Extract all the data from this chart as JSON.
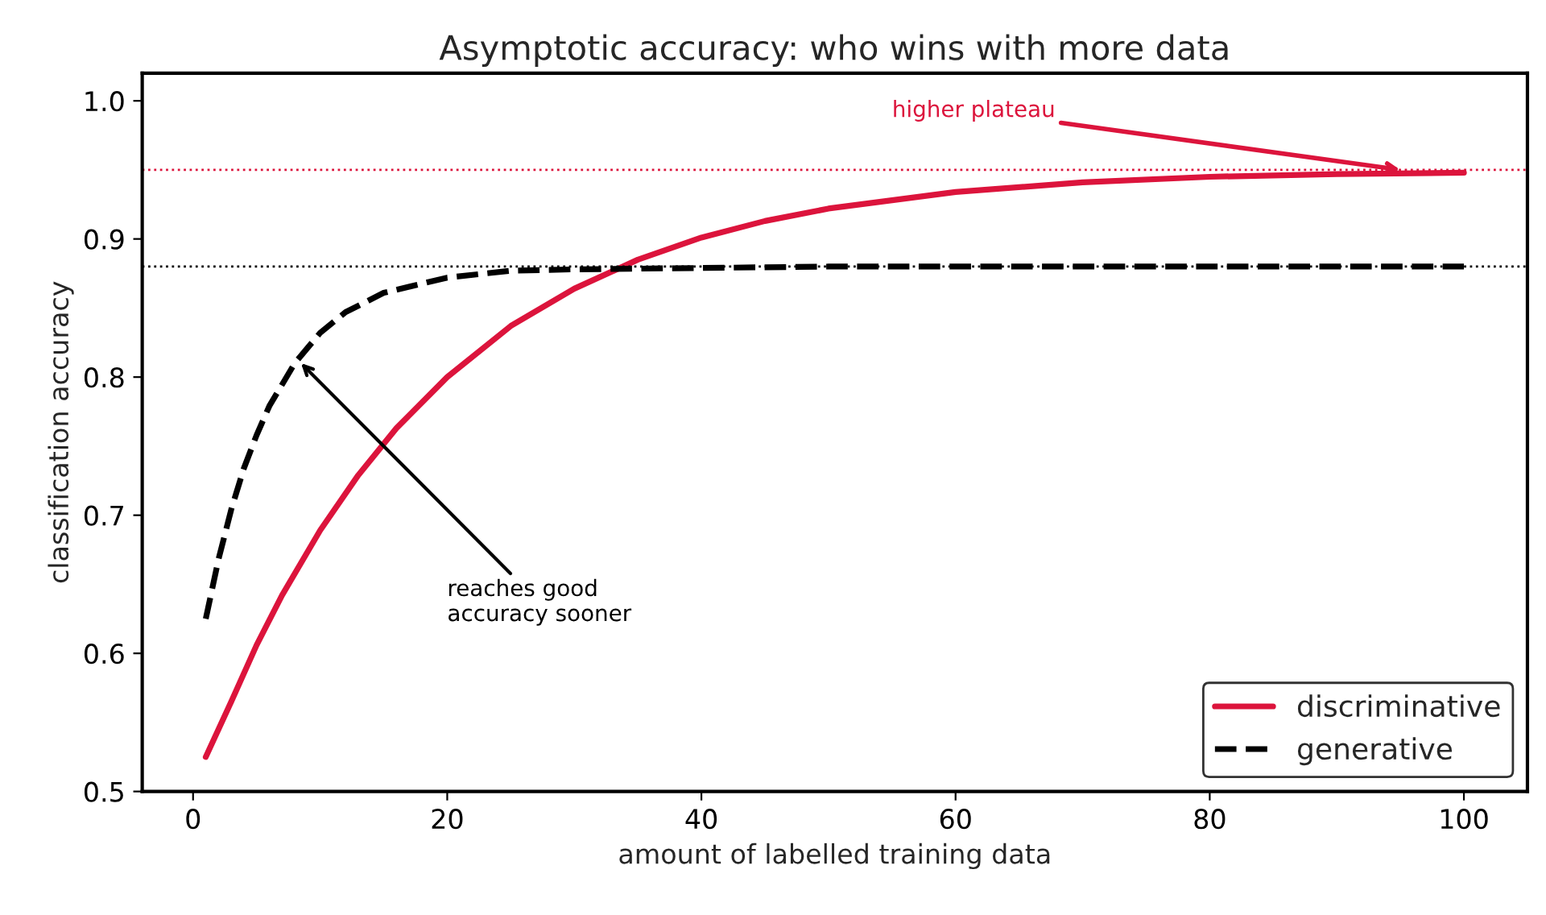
{
  "chart_data": {
    "type": "line",
    "title": "Asymptotic accuracy: who wins with more data",
    "xlabel": "amount of labelled training data",
    "ylabel": "classification accuracy",
    "series": [
      {
        "name": "discriminative",
        "color": "#dc143c",
        "line_style": "solid",
        "x": [
          1,
          3,
          5,
          7,
          10,
          13,
          16,
          20,
          25,
          30,
          35,
          40,
          45,
          50,
          60,
          70,
          80,
          90,
          100
        ],
        "values": [
          0.525,
          0.565,
          0.606,
          0.642,
          0.689,
          0.729,
          0.763,
          0.8,
          0.837,
          0.864,
          0.885,
          0.901,
          0.913,
          0.922,
          0.934,
          0.941,
          0.945,
          0.947,
          0.948
        ]
      },
      {
        "name": "generative",
        "color": "#000000",
        "line_style": "dashed",
        "x": [
          1,
          2,
          3,
          4,
          5,
          6,
          8,
          10,
          12,
          15,
          20,
          25,
          30,
          40,
          50,
          60,
          70,
          80,
          90,
          100
        ],
        "values": [
          0.625,
          0.668,
          0.704,
          0.734,
          0.758,
          0.779,
          0.81,
          0.832,
          0.847,
          0.861,
          0.872,
          0.877,
          0.878,
          0.879,
          0.88,
          0.88,
          0.88,
          0.88,
          0.88,
          0.88
        ]
      }
    ],
    "ref_lines": [
      {
        "axis": "y",
        "value": 0.95,
        "color": "#dc143c",
        "line_style": "dotted"
      },
      {
        "axis": "y",
        "value": 0.88,
        "color": "#000000",
        "line_style": "dotted"
      }
    ],
    "annotations": [
      {
        "text": "higher plateau",
        "x": 95,
        "y": 0.95
      },
      {
        "text": "reaches good\naccuracy sooner",
        "x": 8.5,
        "y": 0.81
      }
    ],
    "xlim": [
      -4,
      105
    ],
    "ylim": [
      0.5,
      1.02
    ],
    "xticks": [
      0,
      20,
      40,
      60,
      80,
      100
    ],
    "yticks": [
      {
        "value": 0.5,
        "label": "0.5"
      },
      {
        "value": 0.6,
        "label": "0.6"
      },
      {
        "value": 0.7,
        "label": "0.7"
      },
      {
        "value": 0.8,
        "label": "0.8"
      },
      {
        "value": 0.9,
        "label": "0.9"
      },
      {
        "value": 1.0,
        "label": "1.0"
      }
    ],
    "legend": "bottom right",
    "grid": false
  }
}
